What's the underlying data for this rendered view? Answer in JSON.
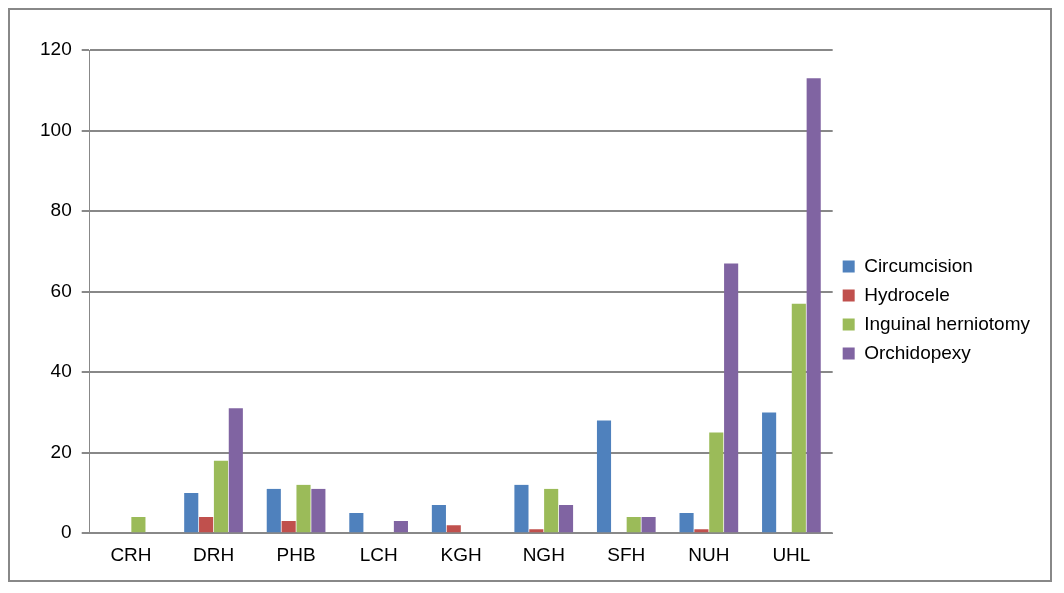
{
  "chart_data": {
    "type": "bar",
    "categories": [
      "CRH",
      "DRH",
      "PHB",
      "LCH",
      "KGH",
      "NGH",
      "SFH",
      "NUH",
      "UHL"
    ],
    "series": [
      {
        "name": "Circumcision",
        "color": "#4f81bd",
        "values": [
          0,
          10,
          11,
          5,
          7,
          12,
          28,
          5,
          30
        ]
      },
      {
        "name": "Hydrocele",
        "color": "#c0504d",
        "values": [
          0,
          4,
          3,
          0,
          2,
          1,
          0,
          1,
          0
        ]
      },
      {
        "name": "Inguinal herniotomy",
        "color": "#9bbb59",
        "values": [
          4,
          18,
          12,
          0,
          0,
          11,
          4,
          25,
          57
        ]
      },
      {
        "name": "Orchidopexy",
        "color": "#8064a2",
        "values": [
          0,
          31,
          11,
          3,
          0,
          7,
          4,
          67,
          113
        ]
      }
    ],
    "ylim": [
      0,
      120
    ],
    "yticks": [
      0,
      20,
      40,
      60,
      80,
      100,
      120
    ],
    "grid": "y",
    "legend": "right"
  }
}
